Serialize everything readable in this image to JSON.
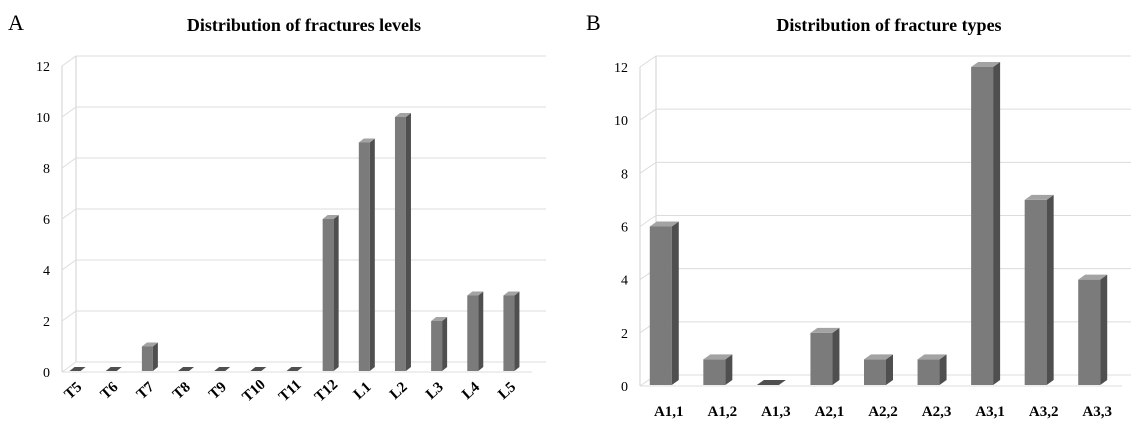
{
  "panels": {
    "left": {
      "letter": "A"
    },
    "right": {
      "letter": "B"
    }
  },
  "chart_data": [
    {
      "type": "bar",
      "title": "Distribution of fractures levels",
      "xlabel": "",
      "ylabel": "",
      "categories": [
        "T5",
        "T6",
        "T7",
        "T8",
        "T9",
        "T10",
        "T11",
        "T12",
        "L1",
        "L2",
        "L3",
        "L4",
        "L5"
      ],
      "values": [
        0,
        0,
        1,
        0,
        0,
        0,
        0,
        6,
        9,
        10,
        2,
        3,
        3
      ],
      "ylim": [
        0,
        12
      ],
      "yticks": [
        0,
        2,
        4,
        6,
        8,
        10,
        12
      ],
      "grid": true,
      "style": "3d-column",
      "x_tick_rotation": "diagonal",
      "colors": {
        "front": "#7b7b7b",
        "side": "#4f4f4f",
        "top": "#a3a3a3"
      }
    },
    {
      "type": "bar",
      "title": "Distribution of fracture types",
      "xlabel": "",
      "ylabel": "",
      "categories": [
        "A1,1",
        "A1,2",
        "A1,3",
        "A2,1",
        "A2,2",
        "A2,3",
        "A3,1",
        "A3,2",
        "A3,3"
      ],
      "values": [
        6,
        1,
        0,
        2,
        1,
        1,
        12,
        7,
        4
      ],
      "ylim": [
        0,
        12
      ],
      "yticks": [
        0,
        2,
        4,
        6,
        8,
        10,
        12
      ],
      "grid": true,
      "style": "3d-column",
      "x_tick_rotation": "horizontal",
      "colors": {
        "front": "#7b7b7b",
        "side": "#4f4f4f",
        "top": "#a3a3a3"
      }
    }
  ]
}
